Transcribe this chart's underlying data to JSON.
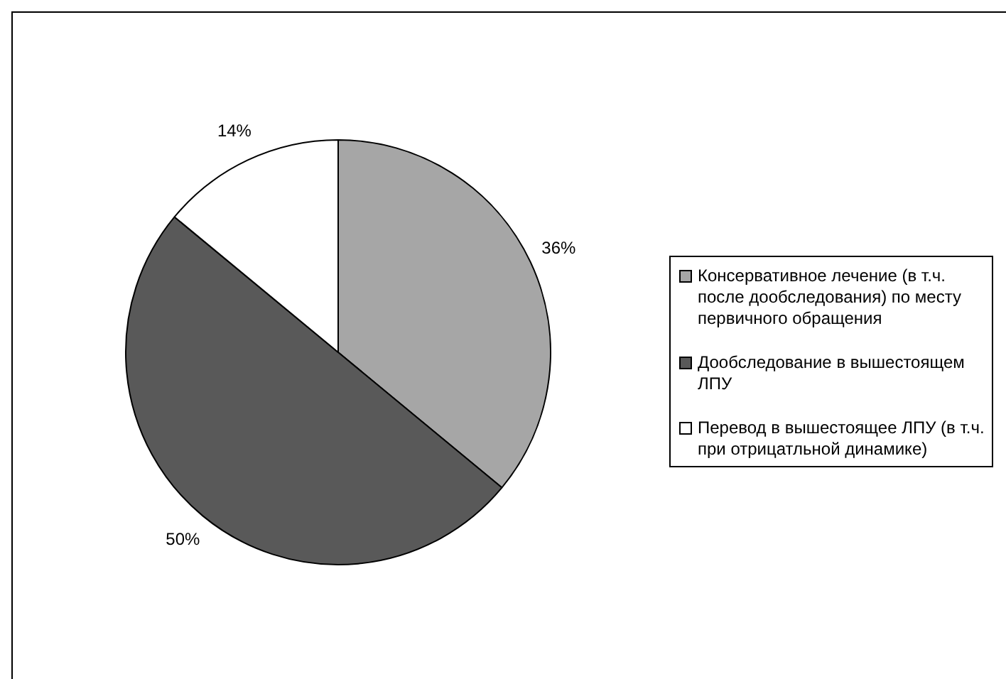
{
  "chart_data": {
    "type": "pie",
    "categories": [
      "Консервативное лечение (в т.ч. после дообследования) по месту первичного обращения",
      "Дообследование в вышестоящем ЛПУ",
      "Перевод в вышестоящее ЛПУ (в т.ч. при отрицатльной динамике)"
    ],
    "values": [
      36,
      50,
      14
    ],
    "colors": [
      "#a6a6a6",
      "#595959",
      "#ffffff"
    ],
    "value_labels": [
      "36%",
      "50%",
      "14%"
    ],
    "legend": "right"
  }
}
